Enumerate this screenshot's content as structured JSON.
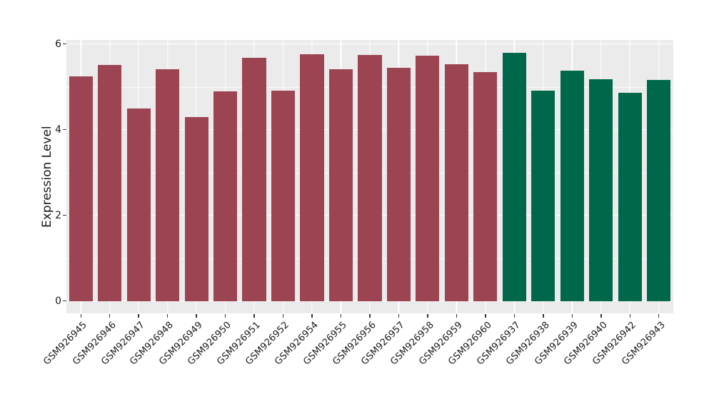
{
  "chart_data": {
    "type": "bar",
    "title": "",
    "xlabel": "",
    "ylabel": "Expression Level",
    "ylim": [
      0,
      6.1
    ],
    "yticks": [
      0,
      2,
      4,
      6
    ],
    "yticks_minor": [
      1,
      3,
      5
    ],
    "grid": "on",
    "legend": "none",
    "panel_bg": "#EBEBEB",
    "grid_major_color": "#FFFFFF",
    "grid_minor_color": "rgba(255,255,255,0.75)",
    "tick_color": "#333333",
    "categories": [
      "GSM926945",
      "GSM926946",
      "GSM926947",
      "GSM926948",
      "GSM926949",
      "GSM926950",
      "GSM926951",
      "GSM926952",
      "GSM926954",
      "GSM926955",
      "GSM926956",
      "GSM926957",
      "GSM926958",
      "GSM926959",
      "GSM926960",
      "GSM926937",
      "GSM926938",
      "GSM926939",
      "GSM926940",
      "GSM926942",
      "GSM926943"
    ],
    "values": [
      5.25,
      5.51,
      4.5,
      5.41,
      4.3,
      4.89,
      5.68,
      4.91,
      5.76,
      5.41,
      5.74,
      5.44,
      5.72,
      5.53,
      5.35,
      5.8,
      4.91,
      5.38,
      5.18,
      4.86,
      5.16
    ],
    "bar_groups": [
      "g1",
      "g1",
      "g1",
      "g1",
      "g1",
      "g1",
      "g1",
      "g1",
      "g1",
      "g1",
      "g1",
      "g1",
      "g1",
      "g1",
      "g1",
      "g2",
      "g2",
      "g2",
      "g2",
      "g2",
      "g2"
    ],
    "group_colors": {
      "g1": "#9D4452",
      "g2": "#00684A"
    }
  }
}
